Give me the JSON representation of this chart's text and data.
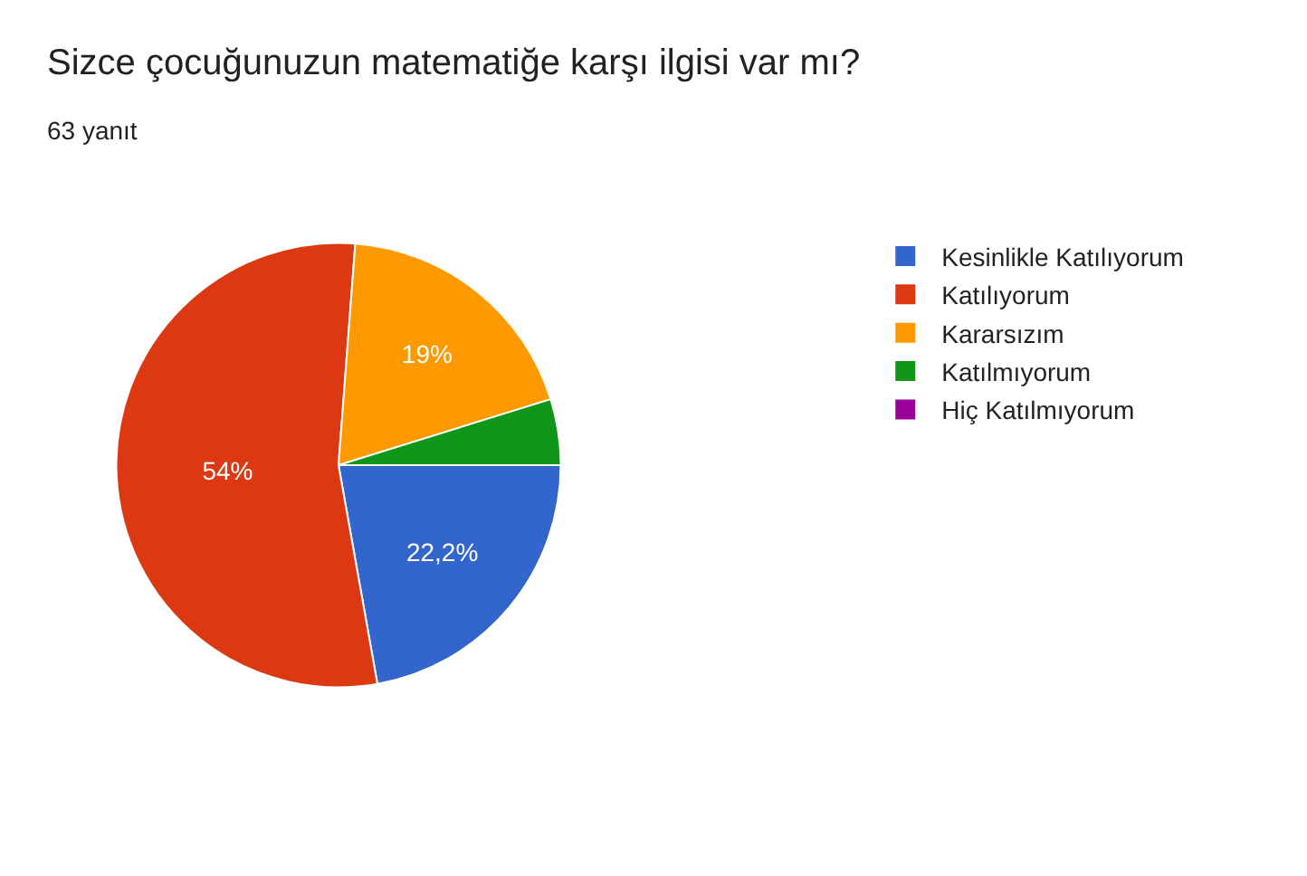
{
  "chart_data": {
    "type": "pie",
    "title": "Sizce çocuğunuzun matematiğe karşı ilgisi var mı?",
    "subtitle": "63 yanıt",
    "categories": [
      "Kesinlikle Katılıyorum",
      "Katılıyorum",
      "Kararsızım",
      "Katılmıyorum",
      "Hiç Katılmıyorum"
    ],
    "values": [
      22.2,
      54,
      19,
      4.8,
      0
    ],
    "value_labels": [
      "22,2%",
      "54%",
      "19%",
      null,
      null
    ],
    "colors": [
      "#3366cc",
      "#dc3912",
      "#ff9900",
      "#109618",
      "#990099"
    ],
    "legend": "right"
  }
}
